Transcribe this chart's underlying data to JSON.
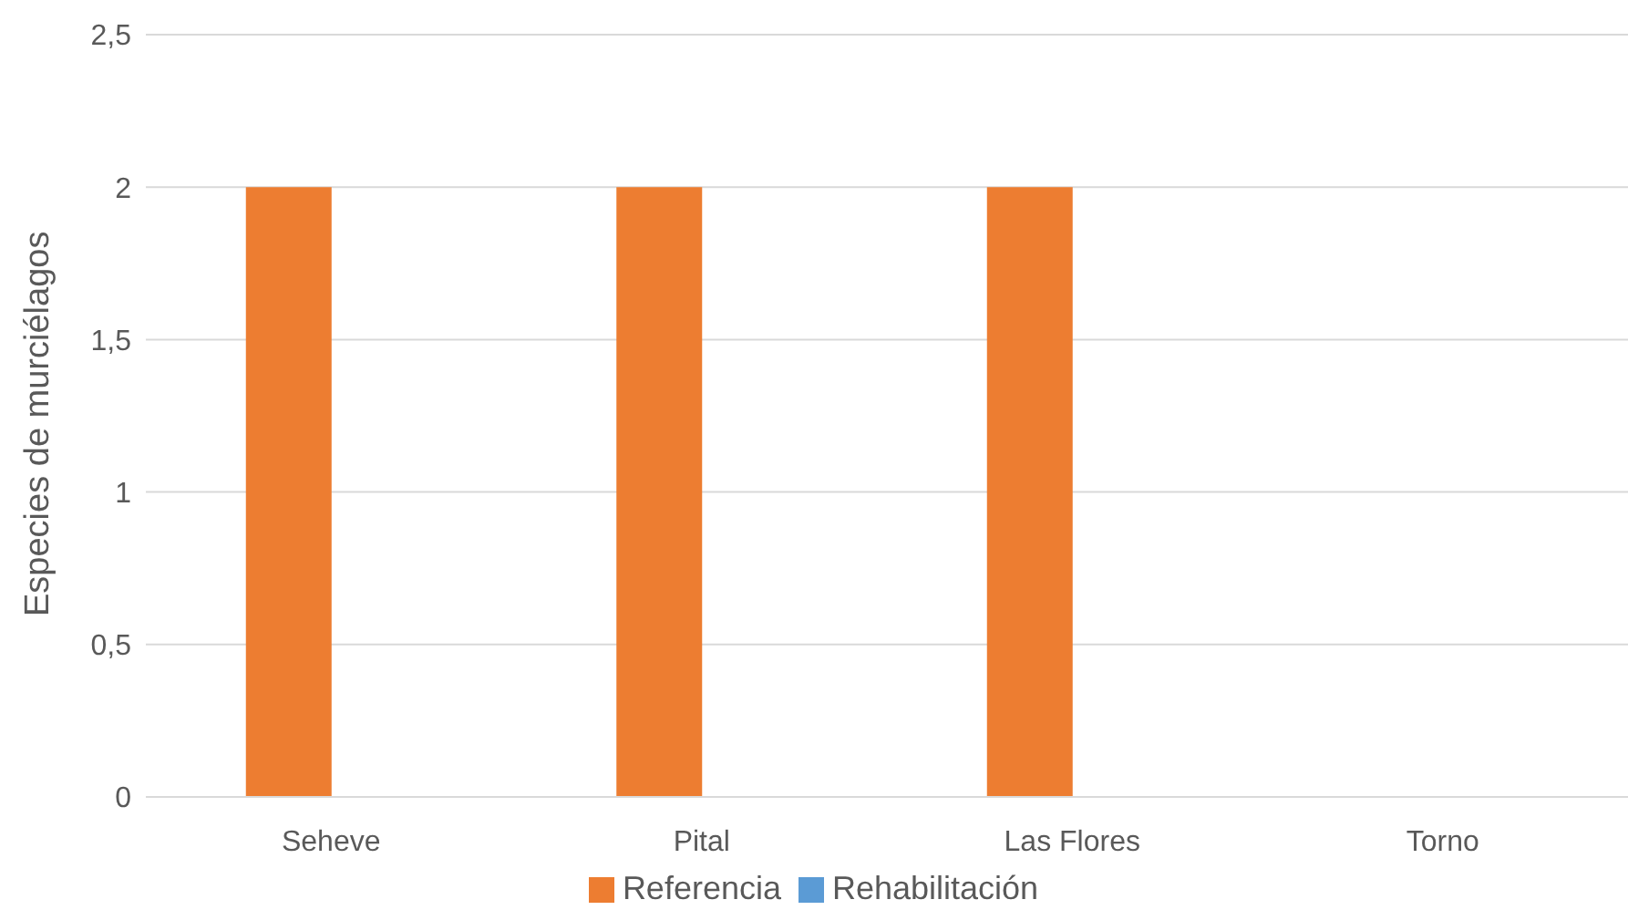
{
  "chart_data": {
    "type": "bar",
    "ylabel": "Especies de murciélagos",
    "categories": [
      "Seheve",
      "Pital",
      "Las Flores",
      "Torno"
    ],
    "series": [
      {
        "name": "Referencia",
        "color": "#ed7d31",
        "values": [
          2,
          2,
          2,
          0
        ]
      },
      {
        "name": "Rehabilitación",
        "color": "#5b9bd5",
        "values": [
          0,
          0,
          0,
          0
        ]
      }
    ],
    "ylim": [
      0,
      2.5
    ],
    "yticks": [
      0,
      {
        "value": 0.5,
        "label": "0,5"
      },
      1,
      {
        "value": 1.5,
        "label": "1,5"
      },
      2,
      {
        "value": 2.5,
        "label": "2,5"
      }
    ],
    "grid": "y",
    "legend": "bottom"
  }
}
